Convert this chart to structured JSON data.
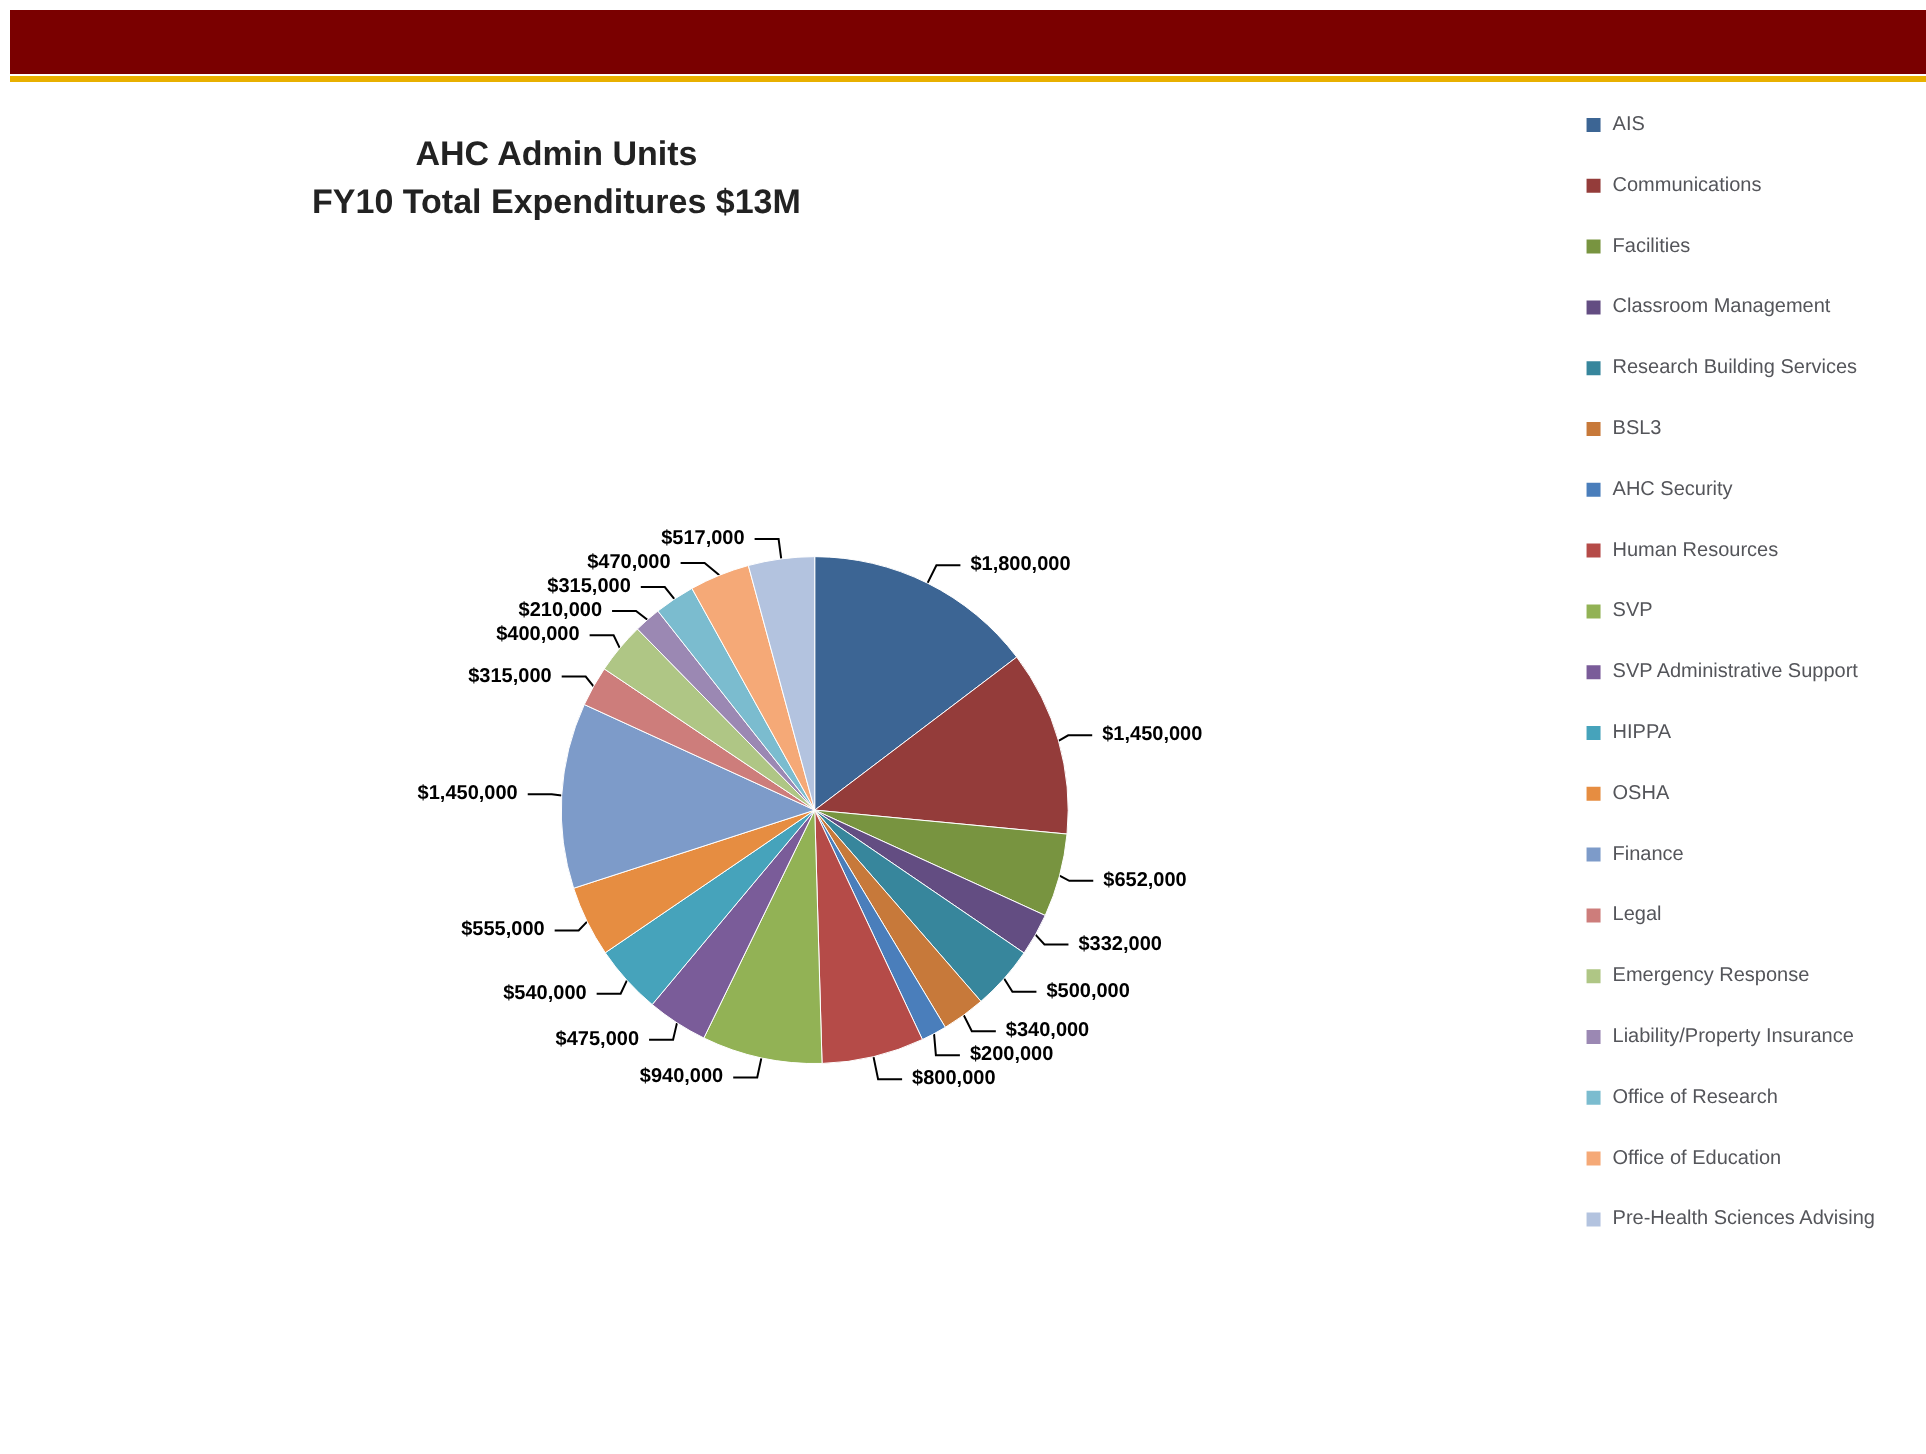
{
  "chart_data": {
    "type": "pie",
    "title": "AHC Admin Units\nFY10 Total Expenditures $13M",
    "categories": [
      "AIS",
      "Communications",
      "Facilities",
      "Classroom Management",
      "Research Building Services",
      "BSL3",
      "AHC Security",
      "Human Resources",
      "SVP",
      "SVP Administrative Support",
      "HIPPA",
      "OSHA",
      "Finance",
      "Legal",
      "Emergency Response",
      "Liability/Property Insurance",
      "Office of Research",
      "Office of Education",
      "Pre-Health Sciences Advising"
    ],
    "values": [
      1800000,
      1450000,
      652000,
      332000,
      500000,
      340000,
      200000,
      800000,
      940000,
      475000,
      540000,
      555000,
      1450000,
      315000,
      400000,
      210000,
      315000,
      470000,
      517000
    ],
    "value_labels": [
      "$1,800,000",
      "$1,450,000",
      "$652,000",
      "$332,000",
      "$500,000",
      "$340,000",
      "$200,000",
      "$800,000",
      "$940,000",
      "$475,000",
      "$540,000",
      "$555,000",
      "$1,450,000",
      "$315,000",
      "$400,000",
      "$210,000",
      "$315,000",
      "$470,000",
      "$517,000"
    ],
    "colors": [
      "#3c6594",
      "#943c3a",
      "#789440",
      "#634d82",
      "#37869c",
      "#c7793a",
      "#4a7ebb",
      "#b54b48",
      "#92b255",
      "#7a5c99",
      "#46a3bb",
      "#e68d41",
      "#7d9bc9",
      "#cd7d7b",
      "#afc685",
      "#9b88b3",
      "#7bbccf",
      "#f5a977",
      "#b3c3df"
    ],
    "legend": "right"
  }
}
